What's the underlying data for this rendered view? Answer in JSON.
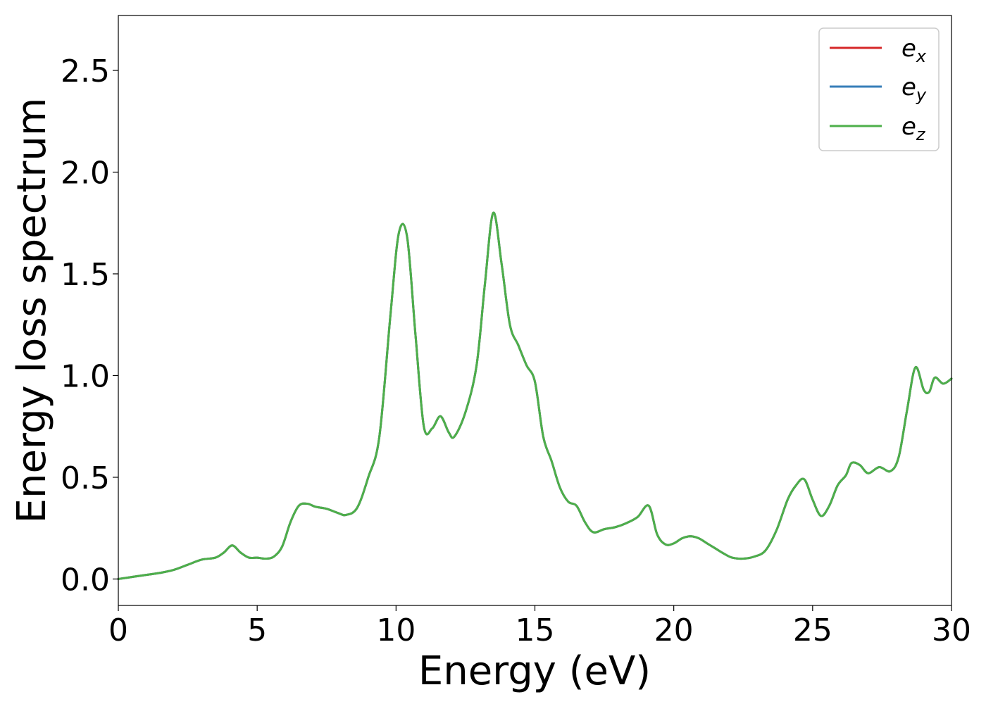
{
  "chart_data": {
    "type": "line",
    "title": "",
    "xlabel": "Energy (eV)",
    "ylabel": "Energy loss spectrum",
    "xlim": [
      0,
      30
    ],
    "ylim": [
      -0.13,
      2.77
    ],
    "xticks": [
      0,
      5,
      10,
      15,
      20,
      25,
      30
    ],
    "xtick_labels": [
      "0",
      "5",
      "10",
      "15",
      "20",
      "25",
      "30"
    ],
    "yticks": [
      0.0,
      0.5,
      1.0,
      1.5,
      2.0,
      2.5
    ],
    "ytick_labels": [
      "0.0",
      "0.5",
      "1.0",
      "1.5",
      "2.0",
      "2.5"
    ],
    "grid": false,
    "legend_position": "top-right",
    "x": [
      0,
      0.5,
      1,
      1.5,
      2,
      2.5,
      3,
      3.5,
      3.8,
      4.1,
      4.4,
      4.7,
      5,
      5.3,
      5.6,
      5.9,
      6.2,
      6.5,
      6.8,
      7.1,
      7.5,
      7.9,
      8.2,
      8.6,
      9,
      9.4,
      9.8,
      10.1,
      10.4,
      10.7,
      11,
      11.3,
      11.6,
      11.9,
      12.1,
      12.5,
      12.9,
      13.2,
      13.5,
      13.8,
      14.1,
      14.4,
      14.7,
      15,
      15.3,
      15.6,
      15.9,
      16.2,
      16.5,
      16.8,
      17.1,
      17.5,
      17.9,
      18.3,
      18.7,
      19.1,
      19.4,
      19.7,
      20,
      20.3,
      20.6,
      20.9,
      21.2,
      21.5,
      21.8,
      22.1,
      22.5,
      22.9,
      23.3,
      23.7,
      24.1,
      24.4,
      24.7,
      25,
      25.3,
      25.6,
      25.9,
      26.2,
      26.4,
      26.7,
      27,
      27.4,
      27.8,
      28.1,
      28.4,
      28.7,
      29,
      29.2,
      29.4,
      29.7,
      30
    ],
    "series": [
      {
        "name": "e",
        "subscript": "x",
        "color": "#d62728",
        "values": [
          0.0,
          0.01,
          0.02,
          0.03,
          0.045,
          0.07,
          0.095,
          0.105,
          0.13,
          0.165,
          0.13,
          0.105,
          0.105,
          0.1,
          0.11,
          0.16,
          0.28,
          0.36,
          0.37,
          0.355,
          0.345,
          0.325,
          0.315,
          0.35,
          0.5,
          0.7,
          1.3,
          1.7,
          1.68,
          1.2,
          0.75,
          0.74,
          0.8,
          0.72,
          0.7,
          0.82,
          1.05,
          1.45,
          1.8,
          1.55,
          1.25,
          1.15,
          1.05,
          0.97,
          0.7,
          0.58,
          0.45,
          0.38,
          0.36,
          0.28,
          0.23,
          0.245,
          0.255,
          0.275,
          0.305,
          0.36,
          0.22,
          0.17,
          0.175,
          0.2,
          0.21,
          0.2,
          0.175,
          0.15,
          0.125,
          0.105,
          0.1,
          0.11,
          0.14,
          0.24,
          0.39,
          0.46,
          0.49,
          0.39,
          0.31,
          0.36,
          0.46,
          0.51,
          0.57,
          0.56,
          0.52,
          0.55,
          0.53,
          0.6,
          0.83,
          1.04,
          0.93,
          0.92,
          0.99,
          0.96,
          0.985
        ]
      },
      {
        "name": "e",
        "subscript": "y",
        "color": "#377eb8",
        "values": [
          0.0,
          0.01,
          0.02,
          0.03,
          0.045,
          0.07,
          0.095,
          0.105,
          0.13,
          0.165,
          0.13,
          0.105,
          0.105,
          0.1,
          0.11,
          0.16,
          0.28,
          0.36,
          0.37,
          0.355,
          0.345,
          0.325,
          0.315,
          0.35,
          0.5,
          0.7,
          1.3,
          1.7,
          1.68,
          1.2,
          0.75,
          0.74,
          0.8,
          0.72,
          0.7,
          0.82,
          1.05,
          1.45,
          1.8,
          1.55,
          1.25,
          1.15,
          1.05,
          0.97,
          0.7,
          0.58,
          0.45,
          0.38,
          0.36,
          0.28,
          0.23,
          0.245,
          0.255,
          0.275,
          0.305,
          0.36,
          0.22,
          0.17,
          0.175,
          0.2,
          0.21,
          0.2,
          0.175,
          0.15,
          0.125,
          0.105,
          0.1,
          0.11,
          0.14,
          0.24,
          0.39,
          0.46,
          0.49,
          0.39,
          0.31,
          0.36,
          0.46,
          0.51,
          0.57,
          0.56,
          0.52,
          0.55,
          0.53,
          0.6,
          0.83,
          1.04,
          0.93,
          0.92,
          0.99,
          0.96,
          0.985
        ]
      },
      {
        "name": "e",
        "subscript": "z",
        "color": "#4daf4a",
        "values": [
          0.0,
          0.01,
          0.02,
          0.03,
          0.045,
          0.07,
          0.095,
          0.105,
          0.13,
          0.165,
          0.13,
          0.105,
          0.105,
          0.1,
          0.11,
          0.16,
          0.28,
          0.36,
          0.37,
          0.355,
          0.345,
          0.325,
          0.315,
          0.35,
          0.5,
          0.7,
          1.3,
          1.7,
          1.68,
          1.2,
          0.75,
          0.74,
          0.8,
          0.72,
          0.7,
          0.82,
          1.05,
          1.45,
          1.8,
          1.55,
          1.25,
          1.15,
          1.05,
          0.97,
          0.7,
          0.58,
          0.45,
          0.38,
          0.36,
          0.28,
          0.23,
          0.245,
          0.255,
          0.275,
          0.305,
          0.36,
          0.22,
          0.17,
          0.175,
          0.2,
          0.21,
          0.2,
          0.175,
          0.15,
          0.125,
          0.105,
          0.1,
          0.11,
          0.14,
          0.24,
          0.39,
          0.46,
          0.49,
          0.39,
          0.31,
          0.36,
          0.46,
          0.51,
          0.57,
          0.56,
          0.52,
          0.55,
          0.53,
          0.6,
          0.83,
          1.04,
          0.93,
          0.92,
          0.99,
          0.96,
          0.985
        ]
      }
    ]
  }
}
